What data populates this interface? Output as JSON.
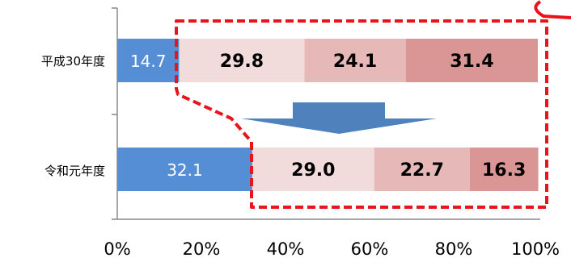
{
  "chart_data": {
    "type": "bar",
    "orientation": "horizontal",
    "stacked": true,
    "percent": true,
    "categories": [
      "平成30年度",
      "令和元年度"
    ],
    "series": [
      {
        "values": [
          14.7,
          32.1
        ],
        "color": "#558ED5"
      },
      {
        "values": [
          29.8,
          29.0
        ],
        "color": "#F2DCDB"
      },
      {
        "values": [
          24.1,
          22.7
        ],
        "color": "#E6B9B8"
      },
      {
        "values": [
          31.4,
          16.3
        ],
        "color": "#D99694"
      }
    ],
    "x_ticks": [
      "0%",
      "20%",
      "40%",
      "60%",
      "80%",
      "100%"
    ],
    "xlim": [
      0,
      100
    ],
    "legend": "none",
    "grid": false,
    "annotations": {
      "highlight": "red dashed outline enclosing the non-blue segments of both bars",
      "arrow": "blue downward arrow from first bar to second bar"
    }
  },
  "colors": {
    "highlight_red": "#E8141B",
    "arrow_blue": "#4F81BD"
  }
}
